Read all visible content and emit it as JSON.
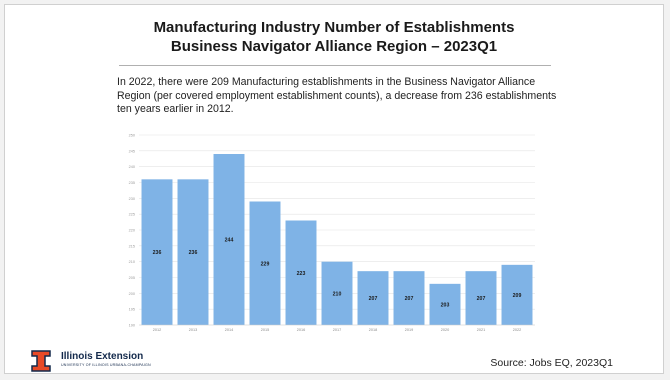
{
  "slide": {
    "title_line1": "Manufacturing Industry Number of Establishments",
    "title_line2": "Business Navigator Alliance Region – 2023Q1",
    "intro": "In 2022, there were 209 Manufacturing establishments in the Business Navigator Alliance Region (per covered employment establishment counts), a decrease from 236 establishments ten years earlier in 2012.",
    "source": "Source: Jobs EQ, 2023Q1"
  },
  "logo": {
    "icon": "illinois-block-i-icon",
    "name": "Illinois Extension",
    "subtitle": "UNIVERSITY OF ILLINOIS URBANA-CHAMPAIGN",
    "brand_color": "#e84a27",
    "navy": "#13294b"
  },
  "chart_data": {
    "type": "bar",
    "categories": [
      "2012",
      "2013",
      "2014",
      "2015",
      "2016",
      "2017",
      "2018",
      "2019",
      "2020",
      "2021",
      "2022"
    ],
    "values": [
      236,
      236,
      244,
      229,
      223,
      210,
      207,
      207,
      203,
      207,
      209
    ],
    "data_labels": [
      "236",
      "236",
      "244",
      "229",
      "223",
      "210",
      "207",
      "207",
      "203",
      "207",
      "209"
    ],
    "ylim": [
      190,
      250
    ],
    "yticks": [
      "190",
      "195",
      "200",
      "205",
      "210",
      "215",
      "220",
      "225",
      "230",
      "235",
      "240",
      "245",
      "250"
    ],
    "bar_color": "#7fb3e6",
    "grid": true,
    "legend": "none"
  }
}
